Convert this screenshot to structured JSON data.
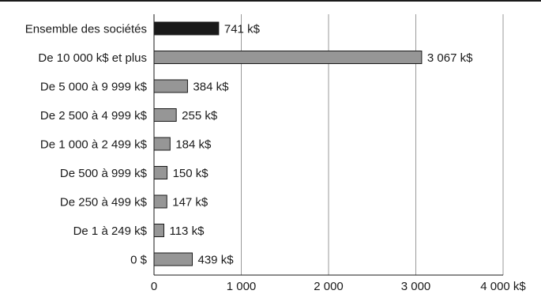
{
  "chart_data": {
    "type": "bar",
    "orientation": "horizontal",
    "categories": [
      "Ensemble des sociétés",
      "De 10 000 k$ et plus",
      "De 5 000 à 9 999 k$",
      "De 2 500 à 4 999 k$",
      "De 1 000 à 2 499 k$",
      "De 500 à 999 k$",
      "De 250 à 499 k$",
      "De 1 à 249 k$",
      "0 $"
    ],
    "values": [
      741,
      3067,
      384,
      255,
      184,
      150,
      147,
      113,
      439
    ],
    "value_labels": [
      "741 k$",
      "3 067 k$",
      "384 k$",
      "255 k$",
      "184 k$",
      "150 k$",
      "147 k$",
      "113 k$",
      "439 k$"
    ],
    "bar_colors": [
      "#1a1a1a",
      "#969696",
      "#969696",
      "#969696",
      "#969696",
      "#969696",
      "#969696",
      "#969696",
      "#969696"
    ],
    "xlim": [
      0,
      4000
    ],
    "xticks": [
      0,
      1000,
      2000,
      3000,
      4000
    ],
    "xtick_labels": [
      "0",
      "1 000",
      "2 000",
      "3 000",
      "4 000 k$"
    ],
    "grid": "vertical",
    "title": "",
    "xlabel": "",
    "ylabel": ""
  }
}
